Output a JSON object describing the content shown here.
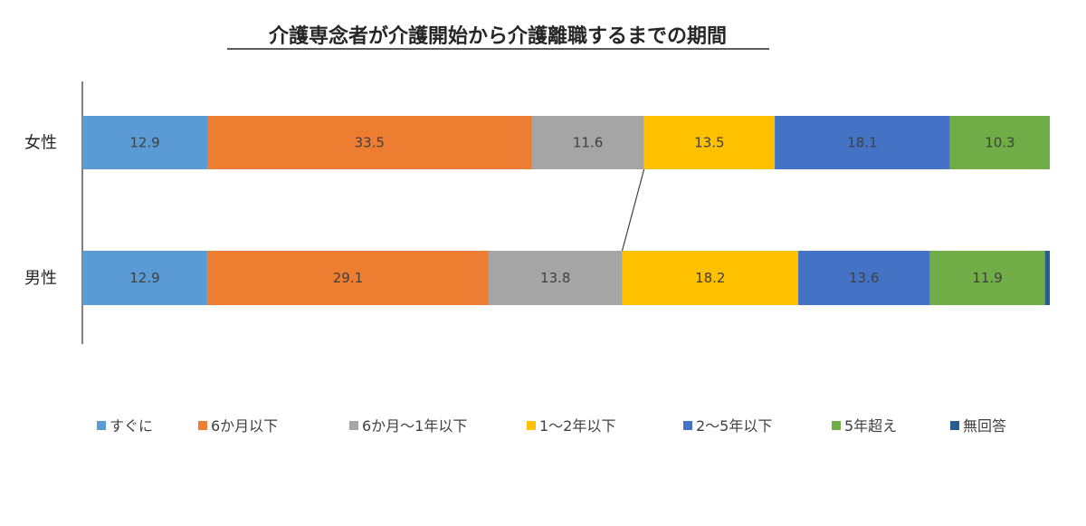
{
  "chart_data": {
    "type": "bar",
    "orientation": "horizontal",
    "stacked": true,
    "percent_stacked": true,
    "title": "介護専念者が介護開始から介護離職するまでの期間",
    "categories": [
      "女性",
      "男性"
    ],
    "series": [
      {
        "name": "すぐに",
        "color": "#5B9BD5",
        "values": [
          12.9,
          12.9
        ]
      },
      {
        "name": "6か月以下",
        "color": "#ED7D31",
        "values": [
          33.5,
          29.1
        ]
      },
      {
        "name": "6か月～1年以下",
        "color": "#A5A5A5",
        "values": [
          11.6,
          13.8
        ]
      },
      {
        "name": "1～2年以下",
        "color": "#FFC000",
        "values": [
          13.5,
          18.2
        ]
      },
      {
        "name": "2～5年以下",
        "color": "#4472C4",
        "values": [
          18.1,
          13.6
        ]
      },
      {
        "name": "5年超え",
        "color": "#70AD47",
        "values": [
          10.3,
          11.9
        ]
      },
      {
        "name": "無回答",
        "color": "#255E91",
        "values": [
          0.0,
          0.5
        ]
      }
    ],
    "data_labels": [
      [
        "12.9",
        "33.5",
        "11.6",
        "13.5",
        "18.1",
        "10.3",
        ""
      ],
      [
        "12.9",
        "29.1",
        "13.8",
        "18.2",
        "13.6",
        "11.9",
        ""
      ]
    ],
    "legend_position": "bottom",
    "series_lines": true,
    "grid": false
  }
}
